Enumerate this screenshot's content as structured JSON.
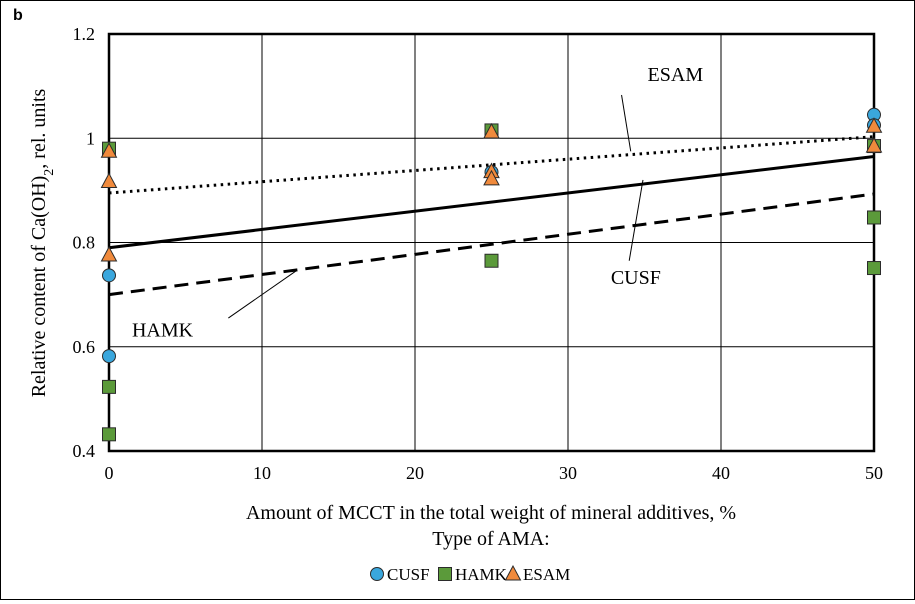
{
  "panel_label": "b",
  "chart_data": {
    "type": "scatter",
    "title": "",
    "xlabel": "Amount of MCCT in the total weight of mineral additives, %",
    "ylabel_main": "Relative content of  Ca(OH)",
    "ylabel_sub": "2",
    "ylabel_tail": ", rel. units",
    "legend_title": "Type of AMA:",
    "xlim": [
      0,
      50
    ],
    "ylim": [
      0.4,
      1.2
    ],
    "xticks": [
      0,
      10,
      20,
      30,
      40,
      50
    ],
    "yticks": [
      0.4,
      0.6,
      0.8,
      1.0,
      1.2
    ],
    "xtick_labels": [
      "0",
      "10",
      "20",
      "30",
      "40",
      "50"
    ],
    "ytick_labels": [
      "0.4",
      "0.6",
      "0.8",
      "1",
      "1.2"
    ],
    "grid": true,
    "legend_position": "bottom",
    "series": [
      {
        "name": "CUSF",
        "marker": "circle",
        "color": "#3aa7dd",
        "points": [
          [
            0,
            0.737
          ],
          [
            0,
            0.582
          ],
          [
            25,
            0.935
          ],
          [
            50,
            1.045
          ],
          [
            50,
            1.025
          ]
        ],
        "trend": {
          "style": "solid",
          "x": [
            0,
            50
          ],
          "y": [
            0.79,
            0.965
          ]
        }
      },
      {
        "name": "HAMK",
        "marker": "square",
        "color": "#5b9a3a",
        "points": [
          [
            0,
            0.98
          ],
          [
            0,
            0.523
          ],
          [
            0,
            0.432
          ],
          [
            25,
            1.015
          ],
          [
            25,
            0.765
          ],
          [
            50,
            0.985
          ],
          [
            50,
            0.848
          ],
          [
            50,
            0.751
          ]
        ],
        "trend": {
          "style": "dashed",
          "x": [
            0,
            50
          ],
          "y": [
            0.7,
            0.893
          ]
        }
      },
      {
        "name": "ESAM",
        "marker": "triangle",
        "color": "#f08a3c",
        "points": [
          [
            0,
            0.975
          ],
          [
            0,
            0.917
          ],
          [
            0,
            0.776
          ],
          [
            25,
            1.012
          ],
          [
            25,
            0.936
          ],
          [
            25,
            0.922
          ],
          [
            50,
            0.985
          ],
          [
            50,
            1.023
          ]
        ],
        "trend": {
          "style": "dotted",
          "x": [
            0,
            50
          ],
          "y": [
            0.895,
            1.003
          ]
        }
      }
    ],
    "annotations": [
      {
        "text": "ESAM",
        "series": "ESAM",
        "label_x": 35.2,
        "label_y": 1.11,
        "point_x": 34.1,
        "point_y": 0.975,
        "leader_x": 33.5,
        "leader_y": 1.083,
        "anchor": "start"
      },
      {
        "text": "CUSF",
        "series": "CUSF",
        "label_x": 32.8,
        "label_y": 0.72,
        "point_x": 34.9,
        "point_y": 0.92,
        "leader_x": 34.0,
        "leader_y": 0.765,
        "anchor": "start"
      },
      {
        "text": "HAMK",
        "series": "HAMK",
        "label_x": 1.5,
        "label_y": 0.62,
        "point_x": 12.2,
        "point_y": 0.745,
        "leader_x": 7.8,
        "leader_y": 0.655,
        "anchor": "start"
      }
    ]
  }
}
